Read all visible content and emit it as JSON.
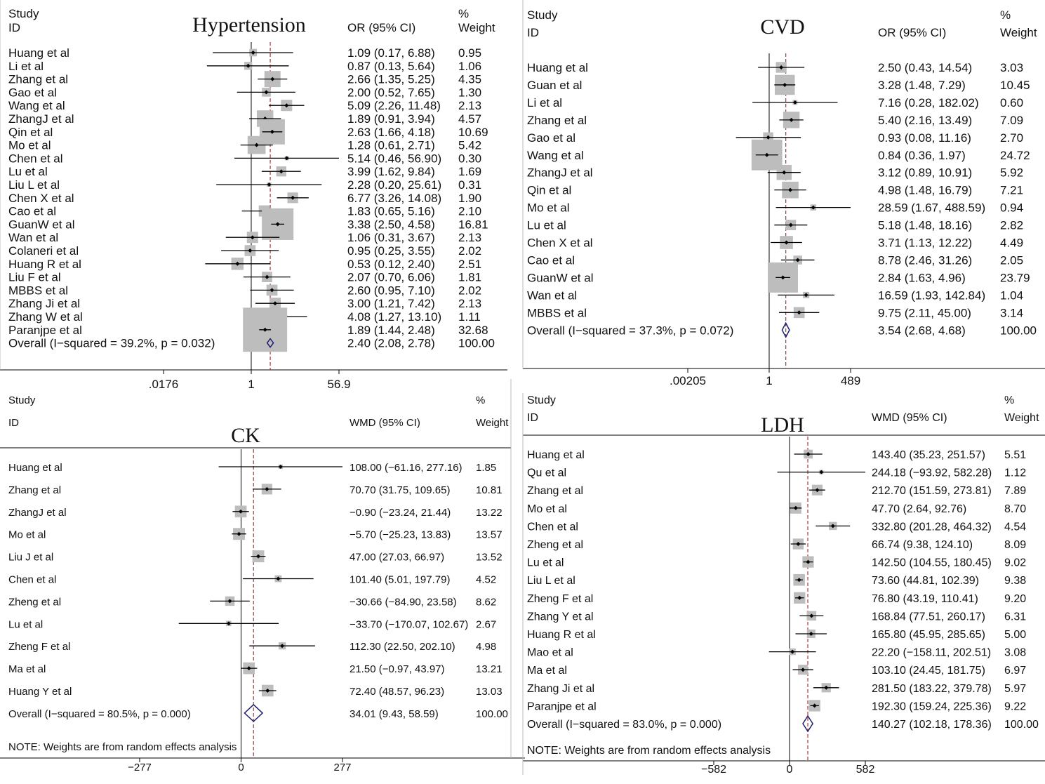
{
  "chart_data": [
    {
      "type": "forest",
      "title": "Hypertension",
      "scale": "log",
      "header": {
        "study": "Study",
        "id": "ID",
        "effect": "OR (95% CI)",
        "pct": "%",
        "weight": "Weight"
      },
      "axis_ticks": [
        ".0176",
        "1",
        "56.9"
      ],
      "axis_values": [
        0.0176,
        1,
        56.9
      ],
      "ref_line": 2.4,
      "studies": [
        {
          "name": "Huang et al",
          "est": 1.09,
          "lo": 0.17,
          "hi": 6.88,
          "ci": "1.09 (0.17, 6.88)",
          "w": "0.95"
        },
        {
          "name": "Li et al",
          "est": 0.87,
          "lo": 0.13,
          "hi": 5.64,
          "ci": "0.87 (0.13, 5.64)",
          "w": "1.06"
        },
        {
          "name": "Zhang et al",
          "est": 2.66,
          "lo": 1.35,
          "hi": 5.25,
          "ci": "2.66 (1.35, 5.25)",
          "w": "4.35"
        },
        {
          "name": "Gao et al",
          "est": 2.0,
          "lo": 0.52,
          "hi": 7.65,
          "ci": "2.00 (0.52, 7.65)",
          "w": "1.30"
        },
        {
          "name": "Wang et al",
          "est": 5.09,
          "lo": 2.26,
          "hi": 11.48,
          "ci": "5.09 (2.26, 11.48)",
          "w": "2.13"
        },
        {
          "name": "ZhangJ et al",
          "est": 1.89,
          "lo": 0.91,
          "hi": 3.94,
          "ci": "1.89 (0.91, 3.94)",
          "w": "4.57"
        },
        {
          "name": "Qin et al",
          "est": 2.63,
          "lo": 1.66,
          "hi": 4.18,
          "ci": "2.63 (1.66, 4.18)",
          "w": "10.69"
        },
        {
          "name": "Mo et al",
          "est": 1.28,
          "lo": 0.61,
          "hi": 2.71,
          "ci": "1.28 (0.61, 2.71)",
          "w": "5.42"
        },
        {
          "name": "Chen et al",
          "est": 5.14,
          "lo": 0.46,
          "hi": 56.9,
          "ci": "5.14 (0.46, 56.90)",
          "w": "0.30"
        },
        {
          "name": "Lu et al",
          "est": 3.99,
          "lo": 1.62,
          "hi": 9.84,
          "ci": "3.99 (1.62, 9.84)",
          "w": "1.69"
        },
        {
          "name": "Liu L et al",
          "est": 2.28,
          "lo": 0.2,
          "hi": 25.61,
          "ci": "2.28 (0.20, 25.61)",
          "w": "0.31"
        },
        {
          "name": "Chen X et al",
          "est": 6.77,
          "lo": 3.26,
          "hi": 14.08,
          "ci": "6.77 (3.26, 14.08)",
          "w": "1.90"
        },
        {
          "name": "Cao et al",
          "est": 1.83,
          "lo": 0.65,
          "hi": 5.16,
          "ci": "1.83 (0.65, 5.16)",
          "w": "2.10"
        },
        {
          "name": "GuanW et al",
          "est": 3.38,
          "lo": 2.5,
          "hi": 4.58,
          "ci": "3.38 (2.50, 4.58)",
          "w": "16.81"
        },
        {
          "name": "Wan et al",
          "est": 1.06,
          "lo": 0.31,
          "hi": 3.67,
          "ci": "1.06 (0.31, 3.67)",
          "w": "2.13"
        },
        {
          "name": "Colaneri et al",
          "est": 0.95,
          "lo": 0.25,
          "hi": 3.55,
          "ci": "0.95 (0.25, 3.55)",
          "w": "2.02"
        },
        {
          "name": "Huang R et al",
          "est": 0.53,
          "lo": 0.12,
          "hi": 2.4,
          "ci": "0.53 (0.12, 2.40)",
          "w": "2.51"
        },
        {
          "name": "Liu F et al",
          "est": 2.07,
          "lo": 0.7,
          "hi": 6.06,
          "ci": "2.07 (0.70, 6.06)",
          "w": "1.81"
        },
        {
          "name": "MBBS et al",
          "est": 2.6,
          "lo": 0.95,
          "hi": 7.1,
          "ci": "2.60 (0.95, 7.10)",
          "w": "2.02"
        },
        {
          "name": "Zhang Ji et al",
          "est": 3.0,
          "lo": 1.21,
          "hi": 7.42,
          "ci": "3.00 (1.21, 7.42)",
          "w": "2.13"
        },
        {
          "name": "Zhang W et al",
          "est": 4.08,
          "lo": 1.27,
          "hi": 13.1,
          "ci": "4.08 (1.27, 13.10)",
          "w": "1.11"
        },
        {
          "name": "Paranjpe et al",
          "est": 1.89,
          "lo": 1.44,
          "hi": 2.48,
          "ci": "1.89 (1.44, 2.48)",
          "w": "32.68"
        }
      ],
      "overall": {
        "label": "Overall  (I−squared = 39.2%, p = 0.032)",
        "est": 2.4,
        "lo": 2.08,
        "hi": 2.78,
        "ci": "2.40 (2.08, 2.78)",
        "w": "100.00"
      },
      "note": ""
    },
    {
      "type": "forest",
      "title": "CVD",
      "scale": "log",
      "header": {
        "study": "Study",
        "id": "ID",
        "effect": "OR (95% CI)",
        "pct": "%",
        "weight": "Weight"
      },
      "axis_ticks": [
        ".00205",
        "1",
        "489"
      ],
      "axis_values": [
        0.00205,
        1,
        489
      ],
      "ref_line": 3.54,
      "studies": [
        {
          "name": "Huang et al",
          "est": 2.5,
          "lo": 0.43,
          "hi": 14.54,
          "ci": "2.50 (0.43, 14.54)",
          "w": "3.03"
        },
        {
          "name": "Guan et al",
          "est": 3.28,
          "lo": 1.48,
          "hi": 7.29,
          "ci": "3.28 (1.48, 7.29)",
          "w": "10.45"
        },
        {
          "name": "Li et al",
          "est": 7.16,
          "lo": 0.28,
          "hi": 182.02,
          "ci": "7.16 (0.28, 182.02)",
          "w": "0.60"
        },
        {
          "name": "Zhang et al",
          "est": 5.4,
          "lo": 2.16,
          "hi": 13.49,
          "ci": "5.40 (2.16, 13.49)",
          "w": "7.09"
        },
        {
          "name": "Gao et al",
          "est": 0.93,
          "lo": 0.08,
          "hi": 11.16,
          "ci": "0.93 (0.08, 11.16)",
          "w": "2.70"
        },
        {
          "name": "Wang et al",
          "est": 0.84,
          "lo": 0.36,
          "hi": 1.97,
          "ci": "0.84 (0.36, 1.97)",
          "w": "24.72"
        },
        {
          "name": "ZhangJ et al",
          "est": 3.12,
          "lo": 0.89,
          "hi": 10.91,
          "ci": "3.12 (0.89, 10.91)",
          "w": "5.92"
        },
        {
          "name": "Qin et al",
          "est": 4.98,
          "lo": 1.48,
          "hi": 16.79,
          "ci": "4.98 (1.48, 16.79)",
          "w": "7.21"
        },
        {
          "name": "Mo et al",
          "est": 28.59,
          "lo": 1.67,
          "hi": 488.59,
          "ci": "28.59 (1.67, 488.59)",
          "w": "0.94"
        },
        {
          "name": "Lu et al",
          "est": 5.18,
          "lo": 1.48,
          "hi": 18.16,
          "ci": "5.18 (1.48, 18.16)",
          "w": "2.82"
        },
        {
          "name": "Chen X et al",
          "est": 3.71,
          "lo": 1.13,
          "hi": 12.22,
          "ci": "3.71 (1.13, 12.22)",
          "w": "4.49"
        },
        {
          "name": "Cao et al",
          "est": 8.78,
          "lo": 2.46,
          "hi": 31.26,
          "ci": "8.78 (2.46, 31.26)",
          "w": "2.05"
        },
        {
          "name": "GuanW et al",
          "est": 2.84,
          "lo": 1.63,
          "hi": 4.96,
          "ci": "2.84 (1.63, 4.96)",
          "w": "23.79"
        },
        {
          "name": "Wan et al",
          "est": 16.59,
          "lo": 1.93,
          "hi": 142.84,
          "ci": "16.59 (1.93, 142.84)",
          "w": "1.04"
        },
        {
          "name": "MBBS et al",
          "est": 9.75,
          "lo": 2.11,
          "hi": 45.0,
          "ci": "9.75 (2.11, 45.00)",
          "w": "3.14"
        }
      ],
      "overall": {
        "label": "Overall  (I−squared = 37.3%, p = 0.072)",
        "est": 3.54,
        "lo": 2.68,
        "hi": 4.68,
        "ci": "3.54 (2.68, 4.68)",
        "w": "100.00"
      },
      "note": ""
    },
    {
      "type": "forest",
      "title": "CK",
      "scale": "linear",
      "header": {
        "study": "Study",
        "id": "ID",
        "effect": "WMD (95% CI)",
        "pct": "%",
        "weight": "Weight"
      },
      "axis_ticks": [
        "−277",
        "0",
        "277"
      ],
      "axis_values": [
        -277,
        0,
        277
      ],
      "ref_line": 34.01,
      "studies": [
        {
          "name": "Huang et al",
          "est": 108.0,
          "lo": -61.16,
          "hi": 277.16,
          "ci": "108.00 (−61.16, 277.16)",
          "w": "1.85"
        },
        {
          "name": "Zhang et al",
          "est": 70.7,
          "lo": 31.75,
          "hi": 109.65,
          "ci": "70.70 (31.75, 109.65)",
          "w": "10.81"
        },
        {
          "name": "ZhangJ et al",
          "est": -0.9,
          "lo": -23.24,
          "hi": 21.44,
          "ci": "−0.90 (−23.24, 21.44)",
          "w": "13.22"
        },
        {
          "name": "Mo et al",
          "est": -5.7,
          "lo": -25.23,
          "hi": 13.83,
          "ci": "−5.70 (−25.23, 13.83)",
          "w": "13.57"
        },
        {
          "name": "Liu J et al",
          "est": 47.0,
          "lo": 27.03,
          "hi": 66.97,
          "ci": "47.00 (27.03, 66.97)",
          "w": "13.52"
        },
        {
          "name": "Chen et al",
          "est": 101.4,
          "lo": 5.01,
          "hi": 197.79,
          "ci": "101.40 (5.01, 197.79)",
          "w": "4.52"
        },
        {
          "name": "Zheng et al",
          "est": -30.66,
          "lo": -84.9,
          "hi": 23.58,
          "ci": "−30.66 (−84.90, 23.58)",
          "w": "8.62"
        },
        {
          "name": "Lu et al",
          "est": -33.7,
          "lo": -170.07,
          "hi": 102.67,
          "ci": "−33.70 (−170.07, 102.67)",
          "w": "2.67"
        },
        {
          "name": "Zheng F et al",
          "est": 112.3,
          "lo": 22.5,
          "hi": 202.1,
          "ci": "112.30 (22.50, 202.10)",
          "w": "4.98"
        },
        {
          "name": "Ma et al",
          "est": 21.5,
          "lo": -0.97,
          "hi": 43.97,
          "ci": "21.50 (−0.97, 43.97)",
          "w": "13.21"
        },
        {
          "name": "Huang Y et al",
          "est": 72.4,
          "lo": 48.57,
          "hi": 96.23,
          "ci": "72.40 (48.57, 96.23)",
          "w": "13.03"
        }
      ],
      "overall": {
        "label": "Overall  (I−squared = 80.5%, p = 0.000)",
        "est": 34.01,
        "lo": 9.43,
        "hi": 58.59,
        "ci": "34.01 (9.43, 58.59)",
        "w": "100.00"
      },
      "note": "NOTE: Weights are from random effects analysis"
    },
    {
      "type": "forest",
      "title": "LDH",
      "scale": "linear",
      "header": {
        "study": "Study",
        "id": "ID",
        "effect": "WMD (95% CI)",
        "pct": "%",
        "weight": "Weight"
      },
      "axis_ticks": [
        "−582",
        "0",
        "582"
      ],
      "axis_values": [
        -582,
        0,
        582
      ],
      "ref_line": 140.27,
      "studies": [
        {
          "name": "Huang et al",
          "est": 143.4,
          "lo": 35.23,
          "hi": 251.57,
          "ci": "143.40 (35.23, 251.57)",
          "w": "5.51"
        },
        {
          "name": "Qu et al",
          "est": 244.18,
          "lo": -93.92,
          "hi": 582.28,
          "ci": "244.18 (−93.92, 582.28)",
          "w": "1.12"
        },
        {
          "name": "Zhang et al",
          "est": 212.7,
          "lo": 151.59,
          "hi": 273.81,
          "ci": "212.70 (151.59, 273.81)",
          "w": "7.89"
        },
        {
          "name": "Mo et al",
          "est": 47.7,
          "lo": 2.64,
          "hi": 92.76,
          "ci": "47.70 (2.64, 92.76)",
          "w": "8.70"
        },
        {
          "name": "Chen et al",
          "est": 332.8,
          "lo": 201.28,
          "hi": 464.32,
          "ci": "332.80 (201.28, 464.32)",
          "w": "4.54"
        },
        {
          "name": "Zheng et al",
          "est": 66.74,
          "lo": 9.38,
          "hi": 124.1,
          "ci": "66.74 (9.38, 124.10)",
          "w": "8.09"
        },
        {
          "name": "Lu et al",
          "est": 142.5,
          "lo": 104.55,
          "hi": 180.45,
          "ci": "142.50 (104.55, 180.45)",
          "w": "9.02"
        },
        {
          "name": "Liu L et al",
          "est": 73.6,
          "lo": 44.81,
          "hi": 102.39,
          "ci": "73.60 (44.81, 102.39)",
          "w": "9.38"
        },
        {
          "name": "Zheng F et al",
          "est": 76.8,
          "lo": 43.19,
          "hi": 110.41,
          "ci": "76.80 (43.19, 110.41)",
          "w": "9.20"
        },
        {
          "name": "Zhang Y et al",
          "est": 168.84,
          "lo": 77.51,
          "hi": 260.17,
          "ci": "168.84 (77.51, 260.17)",
          "w": "6.31"
        },
        {
          "name": "Huang R et al",
          "est": 165.8,
          "lo": 45.95,
          "hi": 285.65,
          "ci": "165.80 (45.95, 285.65)",
          "w": "5.00"
        },
        {
          "name": "Mao et al",
          "est": 22.2,
          "lo": -158.11,
          "hi": 202.51,
          "ci": "22.20 (−158.11, 202.51)",
          "w": "3.08"
        },
        {
          "name": "Ma et al",
          "est": 103.1,
          "lo": 24.45,
          "hi": 181.75,
          "ci": "103.10 (24.45, 181.75)",
          "w": "6.97"
        },
        {
          "name": "Zhang Ji et al",
          "est": 281.5,
          "lo": 183.22,
          "hi": 379.78,
          "ci": "281.50 (183.22, 379.78)",
          "w": "5.97"
        },
        {
          "name": "Paranjpe et al",
          "est": 192.3,
          "lo": 159.24,
          "hi": 225.36,
          "ci": "192.30 (159.24, 225.36)",
          "w": "9.22"
        }
      ],
      "overall": {
        "label": "Overall  (I−squared = 83.0%, p = 0.000)",
        "est": 140.27,
        "lo": 102.18,
        "hi": 178.36,
        "ci": "140.27 (102.18, 178.36)",
        "w": "100.00"
      },
      "note": "NOTE: Weights are from random effects analysis"
    }
  ],
  "colors": {
    "box": "#bdbdbd",
    "line": "#000000",
    "ref_line": "#a33a3a",
    "diamond": "#1f1f6e",
    "text": "#111111"
  }
}
